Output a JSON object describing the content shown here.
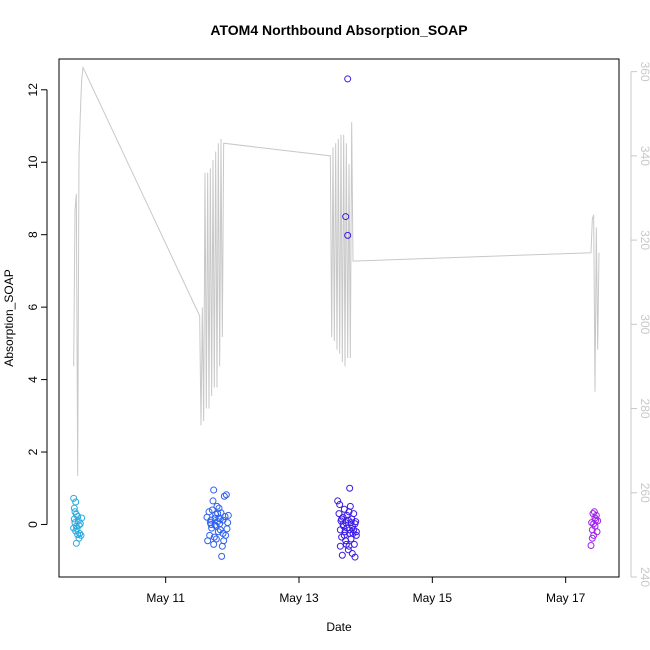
{
  "chart_data": {
    "type": "scatter",
    "title": "ATOM4 Northbound Absorption_SOAP",
    "xlabel": "Date",
    "ylabel": "Absorption_SOAP",
    "x_ticks": [
      "May 11",
      "May 13",
      "May 15",
      "May 17"
    ],
    "x_tick_days": [
      11,
      13,
      15,
      17
    ],
    "xlim": [
      9.4,
      17.8
    ],
    "ylim": [
      -1.45,
      12.85
    ],
    "y_ticks": [
      0,
      2,
      4,
      6,
      8,
      10,
      12
    ],
    "y2lim": [
      240,
      363
    ],
    "y2_ticks": [
      240,
      260,
      280,
      300,
      320,
      340,
      360
    ],
    "grid": false,
    "secondary_line": {
      "color": "#c8c8c8",
      "points": [
        [
          9.62,
          290
        ],
        [
          9.64,
          327
        ],
        [
          9.66,
          331
        ],
        [
          9.68,
          264
        ],
        [
          9.7,
          340
        ],
        [
          9.72,
          350
        ],
        [
          9.74,
          358
        ],
        [
          9.76,
          361
        ],
        [
          11.51,
          302
        ],
        [
          11.53,
          276
        ],
        [
          11.55,
          304
        ],
        [
          11.57,
          277
        ],
        [
          11.59,
          336
        ],
        [
          11.61,
          280
        ],
        [
          11.63,
          336
        ],
        [
          11.65,
          280
        ],
        [
          11.67,
          337
        ],
        [
          11.69,
          283
        ],
        [
          11.71,
          339
        ],
        [
          11.73,
          285
        ],
        [
          11.75,
          341
        ],
        [
          11.77,
          285
        ],
        [
          11.79,
          343
        ],
        [
          11.81,
          290
        ],
        [
          11.83,
          344
        ],
        [
          11.85,
          297
        ],
        [
          11.87,
          343
        ],
        [
          13.47,
          340
        ],
        [
          13.49,
          297
        ],
        [
          13.51,
          342
        ],
        [
          13.53,
          296
        ],
        [
          13.55,
          343
        ],
        [
          13.57,
          294
        ],
        [
          13.59,
          344
        ],
        [
          13.61,
          293
        ],
        [
          13.63,
          345
        ],
        [
          13.65,
          291
        ],
        [
          13.67,
          345
        ],
        [
          13.69,
          290
        ],
        [
          13.71,
          343
        ],
        [
          13.73,
          292
        ],
        [
          13.75,
          338
        ],
        [
          13.77,
          292
        ],
        [
          13.79,
          348
        ],
        [
          13.81,
          315
        ],
        [
          17.38,
          317
        ],
        [
          17.4,
          325
        ],
        [
          17.42,
          326
        ],
        [
          17.44,
          284
        ],
        [
          17.46,
          323
        ],
        [
          17.48,
          294
        ],
        [
          17.5,
          317
        ]
      ]
    },
    "series": [
      {
        "color": "#2aaade",
        "points": [
          [
            9.62,
            0.72
          ],
          [
            9.63,
            0.45
          ],
          [
            9.64,
            0.35
          ],
          [
            9.65,
            0.62
          ],
          [
            9.66,
            0.28
          ],
          [
            9.63,
            0.15
          ],
          [
            9.64,
            0.05
          ],
          [
            9.66,
            -0.05
          ],
          [
            9.67,
            -0.12
          ],
          [
            9.65,
            -0.18
          ],
          [
            9.68,
            -0.28
          ],
          [
            9.7,
            -0.38
          ],
          [
            9.66,
            -0.52
          ],
          [
            9.71,
            -0.25
          ],
          [
            9.73,
            -0.3
          ],
          [
            9.69,
            0.1
          ],
          [
            9.72,
            0.02
          ],
          [
            9.74,
            0.18
          ],
          [
            9.62,
            -0.1
          ],
          [
            9.68,
            0.22
          ],
          [
            9.7,
            -0.02
          ]
        ]
      },
      {
        "color": "#2f60f0",
        "points": [
          [
            11.62,
            0.2
          ],
          [
            11.63,
            -0.45
          ],
          [
            11.65,
            0.35
          ],
          [
            11.66,
            -0.3
          ],
          [
            11.67,
            0.05
          ],
          [
            11.68,
            0.12
          ],
          [
            11.69,
            -0.1
          ],
          [
            11.7,
            0.4
          ],
          [
            11.71,
            0.65
          ],
          [
            11.72,
            0.95
          ],
          [
            11.72,
            -0.55
          ],
          [
            11.73,
            -0.35
          ],
          [
            11.74,
            0.18
          ],
          [
            11.75,
            0.28
          ],
          [
            11.76,
            -0.05
          ],
          [
            11.77,
            0.5
          ],
          [
            11.78,
            0.08
          ],
          [
            11.79,
            -0.2
          ],
          [
            11.8,
            0.45
          ],
          [
            11.81,
            0.02
          ],
          [
            11.82,
            -0.15
          ],
          [
            11.83,
            0.32
          ],
          [
            11.84,
            -0.88
          ],
          [
            11.85,
            -0.6
          ],
          [
            11.86,
            0.12
          ],
          [
            11.87,
            -0.45
          ],
          [
            11.88,
            0.78
          ],
          [
            11.89,
            0.22
          ],
          [
            11.9,
            -0.3
          ],
          [
            11.91,
            0.82
          ],
          [
            11.92,
            -0.12
          ],
          [
            11.93,
            0.05
          ],
          [
            11.94,
            0.25
          ],
          [
            11.74,
            -0.02
          ],
          [
            11.78,
            0.3
          ],
          [
            11.82,
            0.15
          ],
          [
            11.86,
            -0.25
          ],
          [
            11.68,
            0.0
          ],
          [
            11.76,
            -0.4
          ],
          [
            11.8,
            0.18
          ]
        ]
      },
      {
        "color": "#3b18e8",
        "points": [
          [
            13.58,
            0.65
          ],
          [
            13.6,
            0.3
          ],
          [
            13.61,
            0.55
          ],
          [
            13.62,
            -0.6
          ],
          [
            13.63,
            0.1
          ],
          [
            13.64,
            -0.35
          ],
          [
            13.65,
            -0.85
          ],
          [
            13.66,
            0.2
          ],
          [
            13.67,
            -0.05
          ],
          [
            13.68,
            0.42
          ],
          [
            13.69,
            -0.2
          ],
          [
            13.7,
            0.05
          ],
          [
            13.7,
            8.5
          ],
          [
            13.71,
            -0.55
          ],
          [
            13.72,
            0.25
          ],
          [
            13.73,
            12.3
          ],
          [
            13.73,
            7.98
          ],
          [
            13.74,
            -0.7
          ],
          [
            13.75,
            0.35
          ],
          [
            13.76,
            1.0
          ],
          [
            13.76,
            -0.15
          ],
          [
            13.77,
            0.5
          ],
          [
            13.78,
            -0.4
          ],
          [
            13.79,
            0.15
          ],
          [
            13.8,
            -0.8
          ],
          [
            13.81,
            -0.25
          ],
          [
            13.82,
            0.3
          ],
          [
            13.83,
            -0.55
          ],
          [
            13.84,
            -0.9
          ],
          [
            13.85,
            0.08
          ],
          [
            13.86,
            -0.3
          ],
          [
            13.66,
            0.0
          ],
          [
            13.72,
            -0.1
          ],
          [
            13.68,
            -0.3
          ],
          [
            13.78,
            0.05
          ],
          [
            13.74,
            0.12
          ],
          [
            13.8,
            -0.05
          ],
          [
            13.64,
            0.15
          ],
          [
            13.7,
            -0.45
          ],
          [
            13.76,
            -0.25
          ],
          [
            13.82,
            -0.15
          ],
          [
            13.84,
            0.02
          ],
          [
            13.62,
            -0.15
          ],
          [
            13.86,
            -0.2
          ],
          [
            13.75,
            -0.6
          ]
        ]
      },
      {
        "color": "#a020f0",
        "points": [
          [
            17.38,
            -0.58
          ],
          [
            17.39,
            0.05
          ],
          [
            17.4,
            -0.15
          ],
          [
            17.41,
            0.3
          ],
          [
            17.42,
            -0.3
          ],
          [
            17.43,
            0.35
          ],
          [
            17.44,
            -0.05
          ],
          [
            17.45,
            0.12
          ],
          [
            17.46,
            0.25
          ],
          [
            17.47,
            -0.2
          ],
          [
            17.48,
            0.1
          ],
          [
            17.4,
            -0.38
          ],
          [
            17.44,
            0.18
          ],
          [
            17.42,
            0.02
          ]
        ]
      }
    ]
  }
}
